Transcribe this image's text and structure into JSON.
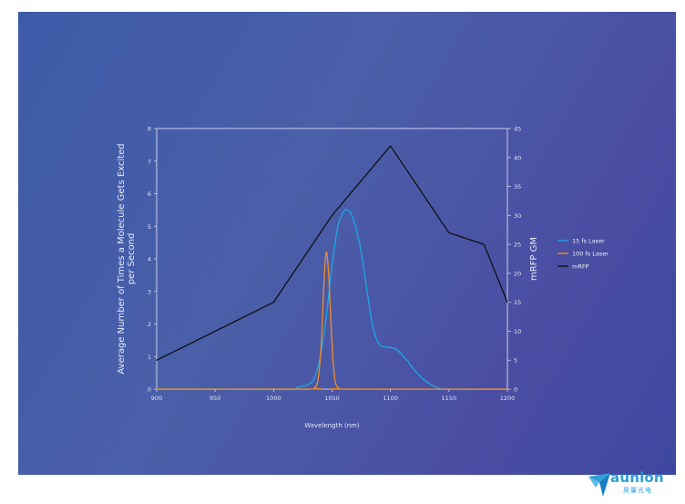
{
  "chart_data": {
    "type": "line",
    "xlabel": "Wavelength (nm)",
    "ylabel_left": "Average Number of Times a Molecule Gets Excited per Second",
    "ylabel_right": "mRFP GM",
    "xlim": [
      900,
      1200
    ],
    "ylim_left": [
      0,
      8
    ],
    "ylim_right": [
      0,
      45
    ],
    "x_ticks": [
      900,
      950,
      1000,
      1050,
      1100,
      1150,
      1200
    ],
    "y_ticks_left": [
      0,
      1,
      2,
      3,
      4,
      5,
      6,
      7,
      8
    ],
    "y_ticks_right": [
      0,
      5,
      10,
      15,
      20,
      25,
      30,
      35,
      40,
      45
    ],
    "legend_position": "right",
    "series": [
      {
        "name": "15 fs Laser",
        "axis": "left",
        "color": "#1fa3e0",
        "x": [
          900,
          1010,
          1020,
          1030,
          1035,
          1040,
          1045,
          1050,
          1055,
          1060,
          1063,
          1066,
          1070,
          1075,
          1080,
          1085,
          1090,
          1095,
          1100,
          1105,
          1110,
          1115,
          1120,
          1130,
          1140,
          1150,
          1200
        ],
        "y": [
          0,
          0,
          0.05,
          0.15,
          0.35,
          1.0,
          2.2,
          3.8,
          5.0,
          5.45,
          5.5,
          5.4,
          5.0,
          4.2,
          3.0,
          1.9,
          1.4,
          1.3,
          1.28,
          1.22,
          1.05,
          0.85,
          0.6,
          0.25,
          0.05,
          0,
          0
        ]
      },
      {
        "name": "100 fs Laser",
        "axis": "left",
        "color": "#e8892b",
        "x": [
          900,
          1030,
          1035,
          1038,
          1041,
          1043,
          1045,
          1047,
          1049,
          1051,
          1053,
          1056,
          1060,
          1200
        ],
        "y": [
          0,
          0,
          0.05,
          0.3,
          1.5,
          3.2,
          4.2,
          3.6,
          2.1,
          0.8,
          0.2,
          0.03,
          0,
          0
        ]
      },
      {
        "name": "mRFP",
        "axis": "right",
        "color": "#111111",
        "x": [
          900,
          1000,
          1050,
          1100,
          1150,
          1180,
          1200
        ],
        "y": [
          5,
          15,
          30,
          42,
          27,
          25,
          15
        ]
      }
    ]
  },
  "logo": {
    "word": "aunion",
    "subtitle": "昊量光电",
    "color": "#2e9fd8"
  }
}
